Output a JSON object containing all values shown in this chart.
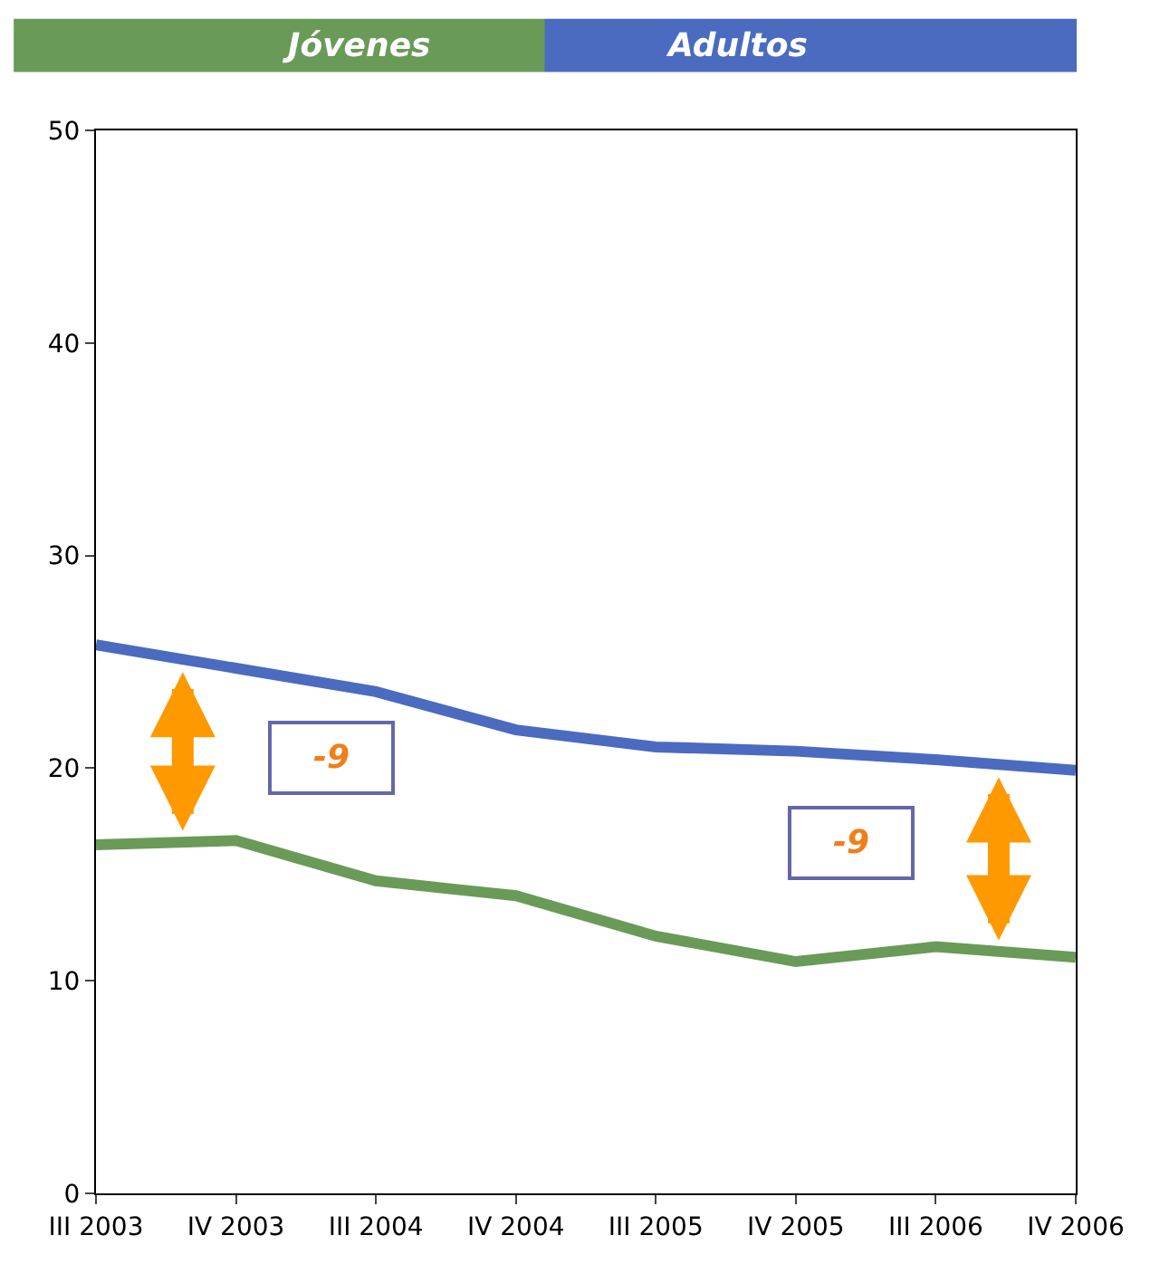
{
  "chart_data": {
    "type": "line",
    "categories": [
      "III 2003",
      "IV 2003",
      "III 2004",
      "IV 2004",
      "III 2005",
      "IV 2005",
      "III 2006",
      "IV 2006"
    ],
    "series": [
      {
        "name": "Jóvenes",
        "color": "#6a9a58",
        "values": [
          16.4,
          16.6,
          14.7,
          14.0,
          12.1,
          10.9,
          11.6,
          11.1
        ]
      },
      {
        "name": "Adultos",
        "color": "#4a6bbf",
        "values": [
          25.8,
          24.7,
          23.6,
          21.8,
          21.0,
          20.8,
          20.4,
          19.9
        ]
      }
    ],
    "ylim": [
      0,
      50
    ],
    "yticks": [
      0,
      10,
      20,
      30,
      40,
      50
    ],
    "legend": "top",
    "marker": "none",
    "line_style": "solid",
    "annotations": [
      "-9",
      "-9"
    ]
  }
}
